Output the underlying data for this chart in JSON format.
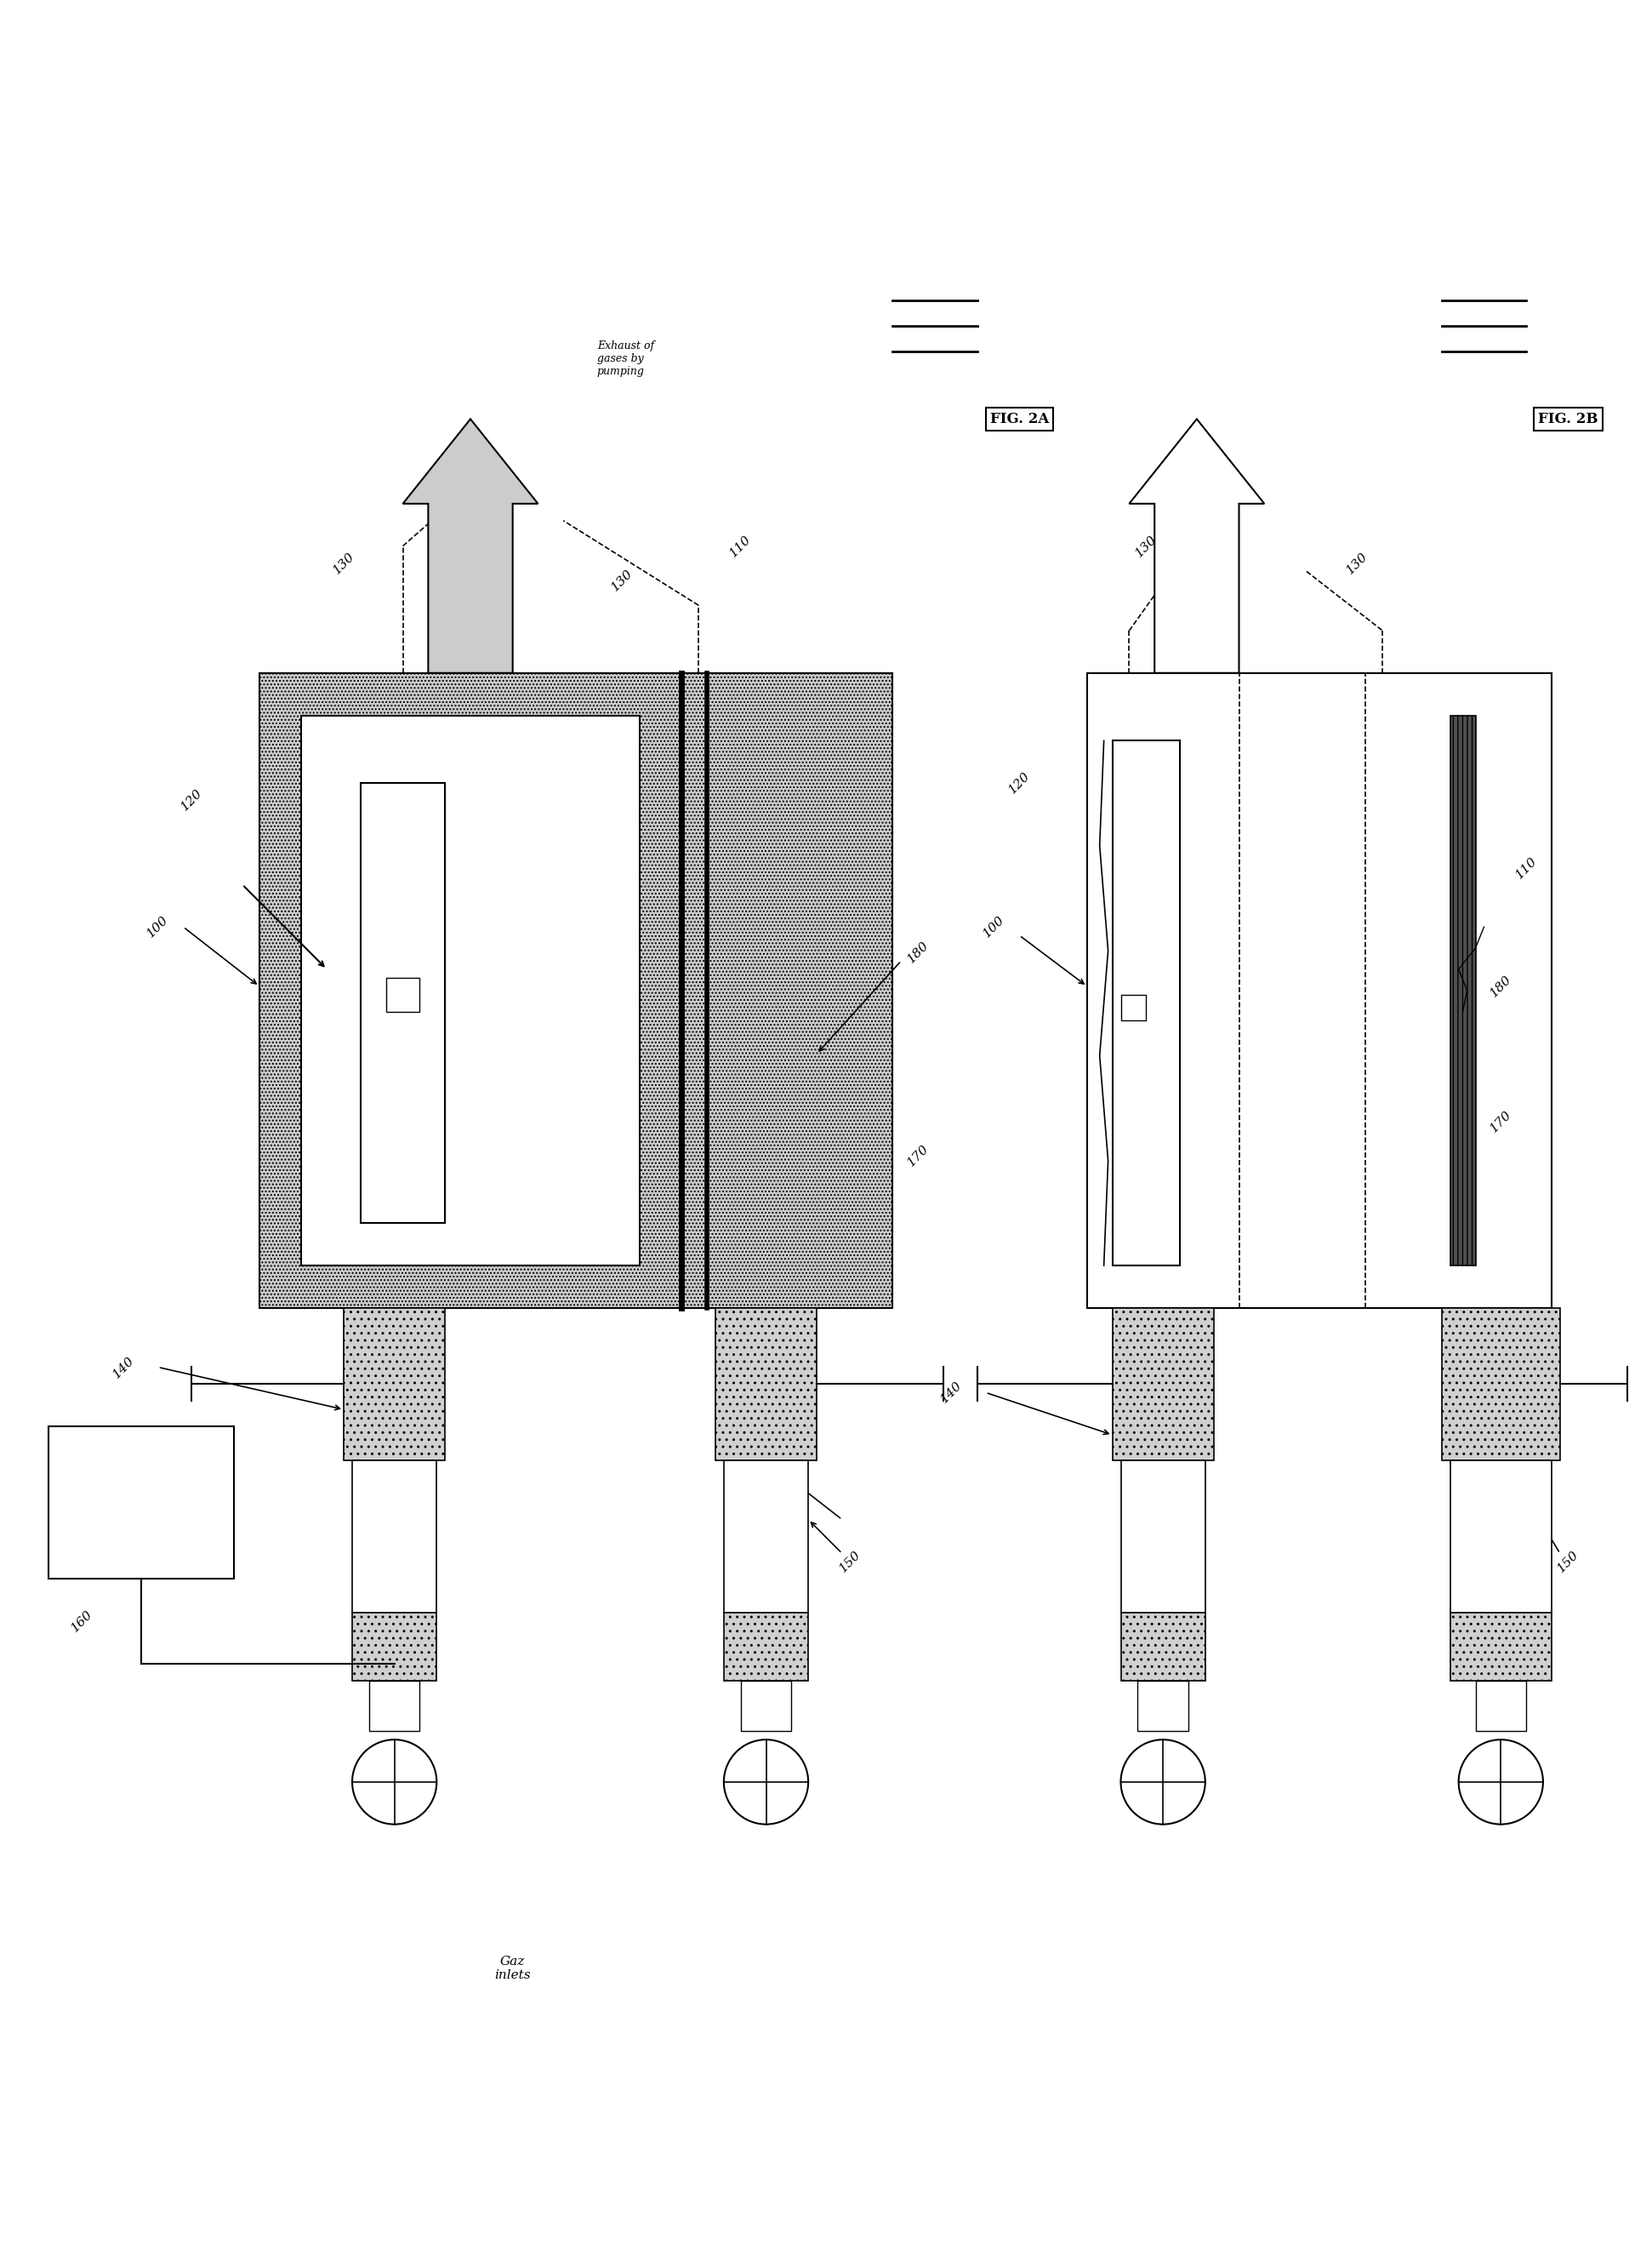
{
  "fig_width": 19.42,
  "fig_height": 26.38,
  "background_color": "#ffffff",
  "fig2A_label": "FIG. 2A",
  "fig2B_label": "FIG. 2B",
  "exhaust_label": "Exhaust of\ngases by\npumping",
  "gaz_inlets_label": "Gaz\ninlets",
  "line_color": "#000000",
  "gray_fill": "#cccccc",
  "white": "#ffffff",
  "dark_rod": "#404040"
}
